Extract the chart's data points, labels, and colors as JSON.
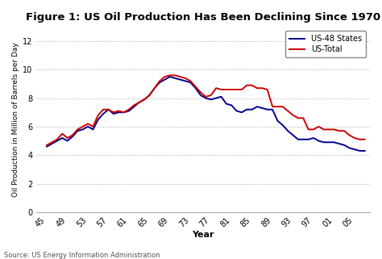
{
  "title": "Figure 1: US Oil Production Has Been Declining Since 1970",
  "xlabel": "Year",
  "ylabel": "Oil Production in Million of Barrels per Day",
  "source_text": "Source: US Energy Information Administration",
  "background_color": "#ffffff",
  "ylim": [
    0,
    13
  ],
  "yticks": [
    0,
    2,
    4,
    6,
    8,
    10,
    12
  ],
  "x_tick_labels": [
    "45",
    "49",
    "53",
    "57",
    "61",
    "65",
    "69",
    "73",
    "77",
    "81",
    "85",
    "89",
    "93",
    "97",
    "01",
    "05"
  ],
  "x_tick_values": [
    1945,
    1949,
    1953,
    1957,
    1961,
    1965,
    1969,
    1973,
    1977,
    1981,
    1985,
    1989,
    1993,
    1997,
    2001,
    2005
  ],
  "us48_color": "#00008B",
  "ustotal_color": "#CC0000",
  "us48_label": "US-48 States",
  "ustotal_label": "US-Total",
  "years_48": [
    1945,
    1946,
    1947,
    1948,
    1949,
    1950,
    1951,
    1952,
    1953,
    1954,
    1955,
    1956,
    1957,
    1958,
    1959,
    1960,
    1961,
    1962,
    1963,
    1964,
    1965,
    1966,
    1967,
    1968,
    1969,
    1970,
    1971,
    1972,
    1973,
    1974,
    1975,
    1976,
    1977,
    1978,
    1979,
    1980,
    1981,
    1982,
    1983,
    1984,
    1985,
    1986,
    1987,
    1988,
    1989,
    1990,
    1991,
    1992,
    1993,
    1994,
    1995,
    1996,
    1997,
    1998,
    1999,
    2000,
    2001,
    2002,
    2003,
    2004,
    2005,
    2006,
    2007
  ],
  "values_48": [
    4.6,
    4.8,
    5.0,
    5.2,
    5.0,
    5.3,
    5.7,
    5.8,
    6.0,
    5.8,
    6.5,
    6.9,
    7.2,
    6.9,
    7.0,
    7.0,
    7.1,
    7.4,
    7.7,
    7.9,
    8.2,
    8.7,
    9.1,
    9.3,
    9.5,
    9.4,
    9.3,
    9.2,
    9.1,
    8.7,
    8.2,
    8.0,
    7.9,
    8.0,
    8.1,
    7.6,
    7.5,
    7.1,
    7.0,
    7.2,
    7.2,
    7.4,
    7.3,
    7.2,
    7.2,
    6.4,
    6.1,
    5.7,
    5.4,
    5.1,
    5.1,
    5.1,
    5.2,
    5.0,
    4.9,
    4.9,
    4.9,
    4.8,
    4.7,
    4.5,
    4.4,
    4.3,
    4.3
  ],
  "years_total": [
    1945,
    1946,
    1947,
    1948,
    1949,
    1950,
    1951,
    1952,
    1953,
    1954,
    1955,
    1956,
    1957,
    1958,
    1959,
    1960,
    1961,
    1962,
    1963,
    1964,
    1965,
    1966,
    1967,
    1968,
    1969,
    1970,
    1971,
    1972,
    1973,
    1974,
    1975,
    1976,
    1977,
    1978,
    1979,
    1980,
    1981,
    1982,
    1983,
    1984,
    1985,
    1986,
    1987,
    1988,
    1989,
    1990,
    1991,
    1992,
    1993,
    1994,
    1995,
    1996,
    1997,
    1998,
    1999,
    2000,
    2001,
    2002,
    2003,
    2004,
    2005,
    2006,
    2007
  ],
  "values_total": [
    4.7,
    4.9,
    5.1,
    5.5,
    5.2,
    5.4,
    5.8,
    6.0,
    6.2,
    6.0,
    6.8,
    7.2,
    7.2,
    7.0,
    7.1,
    7.0,
    7.2,
    7.5,
    7.7,
    7.9,
    8.2,
    8.7,
    9.2,
    9.5,
    9.6,
    9.6,
    9.5,
    9.4,
    9.2,
    8.8,
    8.4,
    8.1,
    8.2,
    8.7,
    8.6,
    8.6,
    8.6,
    8.6,
    8.6,
    8.9,
    8.9,
    8.7,
    8.7,
    8.6,
    7.4,
    7.4,
    7.4,
    7.1,
    6.8,
    6.6,
    6.6,
    5.8,
    5.8,
    6.0,
    5.8,
    5.8,
    5.8,
    5.7,
    5.7,
    5.4,
    5.2,
    5.1,
    5.1
  ]
}
